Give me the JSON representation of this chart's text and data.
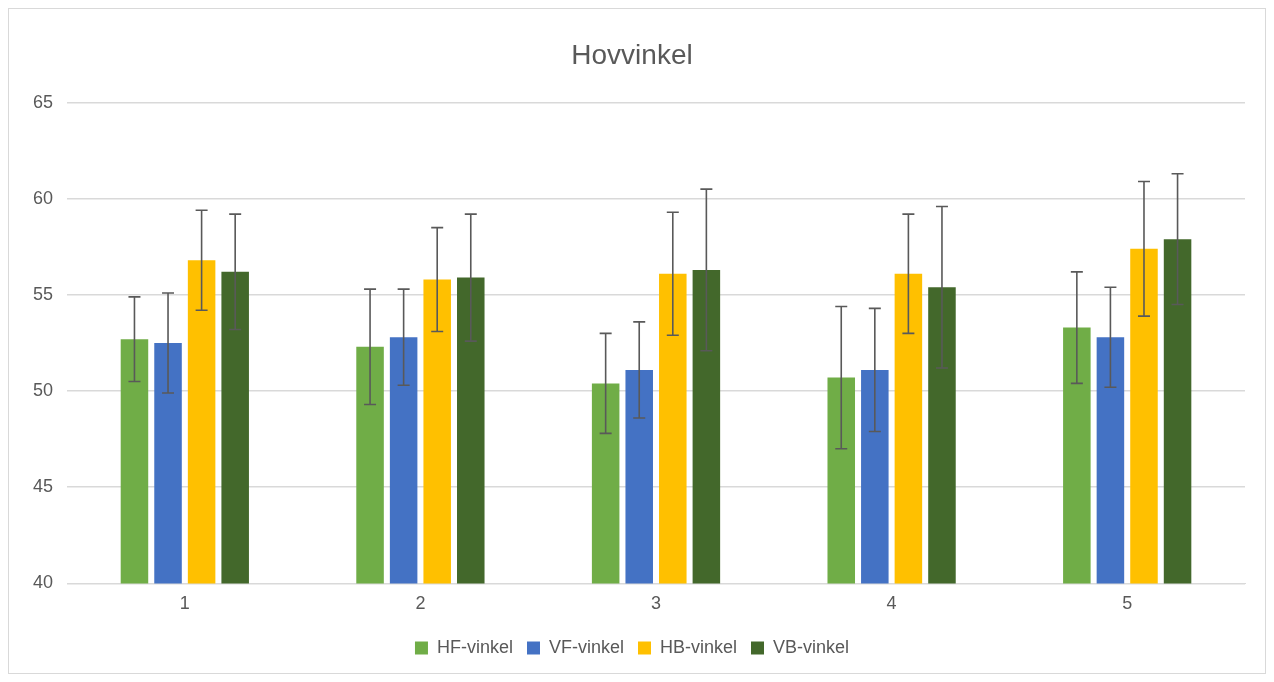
{
  "chart_data": {
    "type": "bar",
    "title": "Hovvinkel",
    "categories": [
      "1",
      "2",
      "3",
      "4",
      "5"
    ],
    "series": [
      {
        "name": "HF-vinkel",
        "color": "#70ad47",
        "values": [
          52.7,
          52.3,
          50.4,
          50.7,
          53.3
        ],
        "errors": [
          2.2,
          3.0,
          2.6,
          3.7,
          2.9
        ]
      },
      {
        "name": "VF-vinkel",
        "color": "#4472c4",
        "values": [
          52.5,
          52.8,
          51.1,
          51.1,
          52.8
        ],
        "errors": [
          2.6,
          2.5,
          2.5,
          3.2,
          2.6
        ]
      },
      {
        "name": "HB-vinkel",
        "color": "#ffc000",
        "values": [
          56.8,
          55.8,
          56.1,
          56.1,
          57.4
        ],
        "errors": [
          2.6,
          2.7,
          3.2,
          3.1,
          3.5
        ]
      },
      {
        "name": "VB-vinkel",
        "color": "#43682b",
        "values": [
          56.2,
          55.9,
          56.3,
          55.4,
          57.9
        ],
        "errors": [
          3.0,
          3.3,
          4.2,
          4.2,
          3.4
        ]
      }
    ],
    "ylim": [
      40,
      65
    ],
    "yticks": [
      40,
      45,
      50,
      55,
      60,
      65
    ],
    "grid": "y",
    "legend": "bottom"
  }
}
